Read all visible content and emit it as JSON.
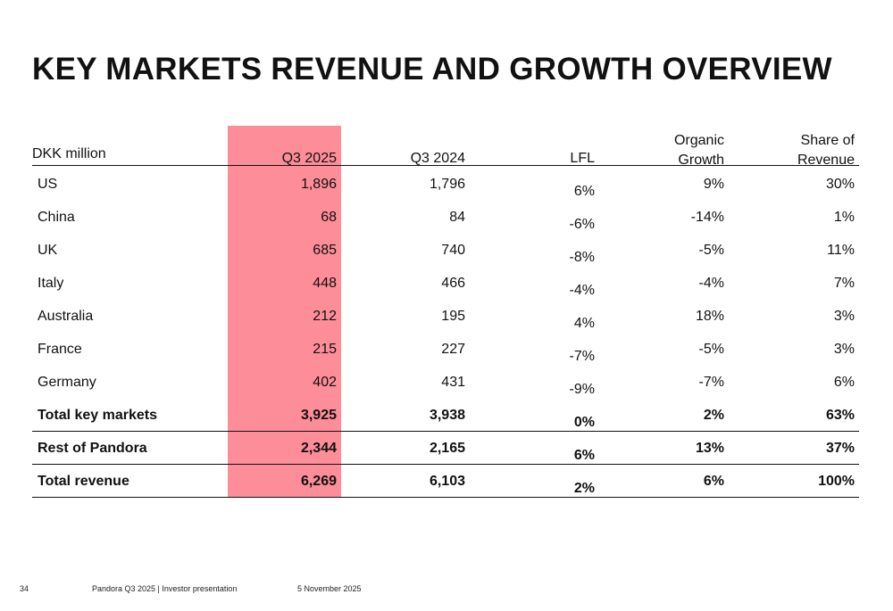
{
  "title": "KEY MARKETS REVENUE AND GROWTH OVERVIEW",
  "table": {
    "header": [
      "DKK million",
      "Q3 2025",
      "Q3 2024",
      "LFL",
      "Organic Growth",
      "Share of Revenue"
    ],
    "rows": [
      [
        "US",
        "1,896",
        "1,796",
        "6%",
        "9%",
        "30%"
      ],
      [
        "China",
        "68",
        "84",
        "-6%",
        "-14%",
        "1%"
      ],
      [
        "UK",
        "685",
        "740",
        "-8%",
        "-5%",
        "11%"
      ],
      [
        "Italy",
        "448",
        "466",
        "-4%",
        "-4%",
        "7%"
      ],
      [
        "Australia",
        "212",
        "195",
        "4%",
        "18%",
        "3%"
      ],
      [
        "France",
        "215",
        "227",
        "-7%",
        "-5%",
        "3%"
      ],
      [
        "Germany",
        "402",
        "431",
        "-9%",
        "-7%",
        "6%"
      ],
      [
        "Total key markets",
        "3,925",
        "3,938",
        "0%",
        "2%",
        "63%"
      ],
      [
        "Rest of Pandora",
        "2,344",
        "2,165",
        "6%",
        "13%",
        "37%"
      ],
      [
        "Total revenue",
        "6,269",
        "6,103",
        "2%",
        "6%",
        "100%"
      ]
    ]
  },
  "footer": {
    "page": "34",
    "source": "Pandora Q3 2025 | Investor presentation",
    "date": "5 November 2025"
  }
}
